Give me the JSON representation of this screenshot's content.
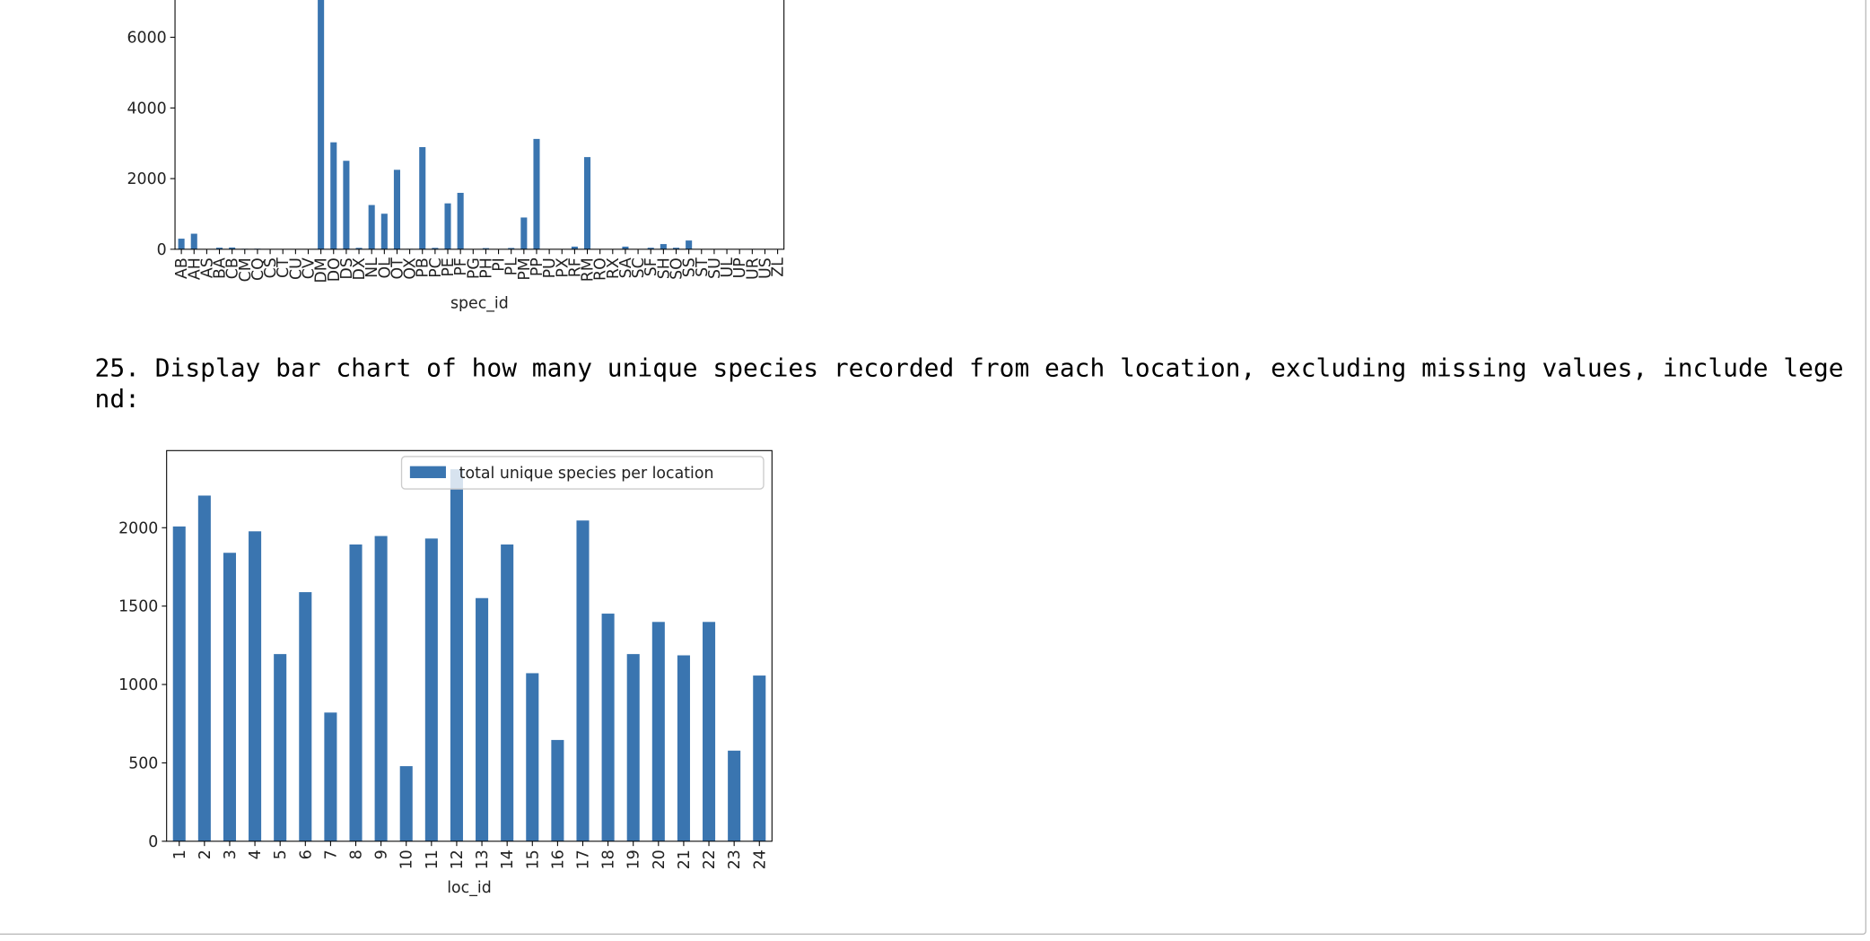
{
  "markdown": "25. Display bar chart of how many unique species recorded from each location, excluding missing values, include legend:",
  "chart_data": [
    {
      "type": "bar",
      "xlabel": "spec_id",
      "color": "#3a75b0",
      "categories": [
        "AB",
        "AH",
        "AS",
        "BA",
        "CB",
        "CM",
        "CQ",
        "CS",
        "CT",
        "CU",
        "CV",
        "DM",
        "DO",
        "DS",
        "DX",
        "NL",
        "OL",
        "OT",
        "OX",
        "PB",
        "PC",
        "PE",
        "PF",
        "PG",
        "PH",
        "PI",
        "PL",
        "PM",
        "PP",
        "PU",
        "PX",
        "RF",
        "RM",
        "RO",
        "RX",
        "SA",
        "SC",
        "SF",
        "SH",
        "SO",
        "SS",
        "ST",
        "SU",
        "UL",
        "UP",
        "UR",
        "US",
        "ZL"
      ],
      "values": [
        300,
        440,
        2,
        45,
        50,
        13,
        16,
        1,
        1,
        1,
        1,
        10596,
        3027,
        2504,
        40,
        1252,
        1006,
        2249,
        12,
        2891,
        39,
        1299,
        1597,
        8,
        32,
        9,
        36,
        899,
        3123,
        5,
        6,
        75,
        2609,
        8,
        2,
        75,
        1,
        43,
        147,
        43,
        248,
        1,
        5,
        4,
        8,
        10,
        4,
        2
      ],
      "ylim": [
        0,
        11126
      ],
      "yticks": [
        0,
        2000,
        4000,
        6000
      ]
    },
    {
      "type": "bar",
      "xlabel": "loc_id",
      "legend": "upper right",
      "categories": [
        "1",
        "2",
        "3",
        "4",
        "5",
        "6",
        "7",
        "8",
        "9",
        "10",
        "11",
        "12",
        "13",
        "14",
        "15",
        "16",
        "17",
        "18",
        "19",
        "20",
        "21",
        "22",
        "23",
        "24"
      ],
      "series": [
        {
          "name": "total unique species per location",
          "color": "#3a75b0",
          "values": [
            2008,
            2205,
            1840,
            1977,
            1194,
            1589,
            821,
            1893,
            1947,
            479,
            1931,
            2373,
            1551,
            1893,
            1072,
            646,
            2046,
            1452,
            1194,
            1399,
            1186,
            1399,
            578,
            1057
          ]
        }
      ],
      "ylim": [
        0,
        2492
      ],
      "yticks": [
        0,
        500,
        1000,
        1500,
        2000
      ]
    }
  ]
}
